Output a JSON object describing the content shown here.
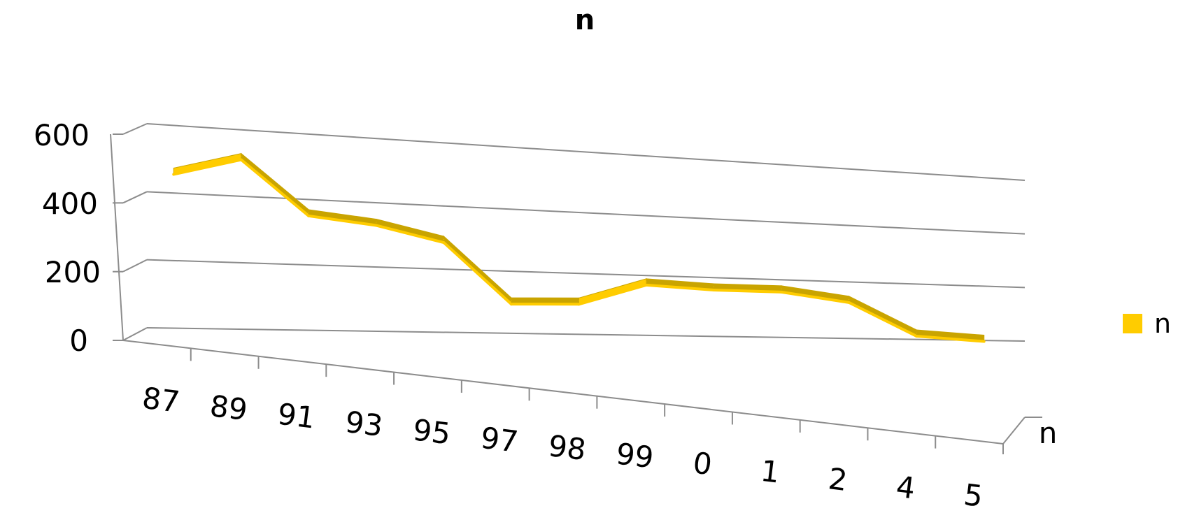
{
  "chart_data": {
    "type": "line",
    "title": "n",
    "categories": [
      "87",
      "89",
      "91",
      "93",
      "95",
      "97",
      "98",
      "99",
      "0",
      "1",
      "2",
      "4",
      "5"
    ],
    "series": [
      {
        "name": "n",
        "values": [
          475,
          530,
          370,
          350,
          305,
          115,
          120,
          190,
          180,
          180,
          150,
          35,
          20
        ]
      }
    ],
    "ylim": [
      0,
      600
    ],
    "yticks": [
      "600",
      "400",
      "200",
      "0"
    ],
    "depth_axis_label": "n",
    "legend_position": "right",
    "grid": true,
    "style": "3d-line",
    "series_color": "#FFCC00",
    "series_shade": "#C9A400"
  }
}
